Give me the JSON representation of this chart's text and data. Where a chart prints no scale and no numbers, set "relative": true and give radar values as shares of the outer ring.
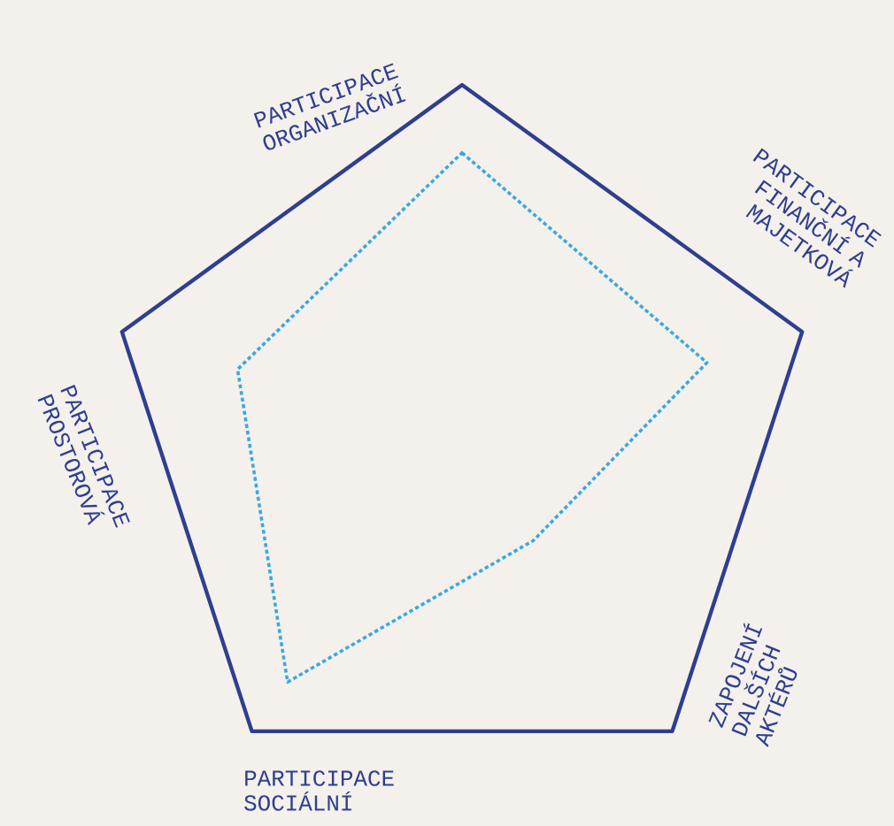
{
  "chart_data": {
    "type": "radar",
    "relative": true,
    "grid": true,
    "marker": "none",
    "line_style": "dotted",
    "categories": [
      "PARTICIPACE ORGANIZAČNÍ",
      "PARTICIPACE FINANČNÍ A MAJETKOVÁ",
      "ZAPOJENÍ DALŠÍCH AKTÉRŮ",
      "PARTICIPACE SOCIÁLNÍ",
      "PARTICIPACE PROSTOROVÁ"
    ],
    "series": [
      {
        "color": "#3aa8e0",
        "values": [
          0.81,
          0.72,
          0.34,
          0.83,
          0.66
        ]
      }
    ]
  }
}
